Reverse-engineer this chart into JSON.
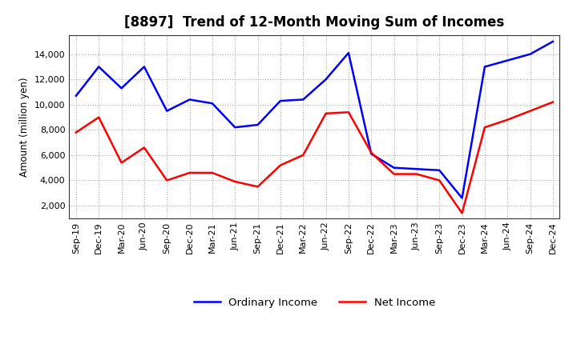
{
  "title": "[8897]  Trend of 12-Month Moving Sum of Incomes",
  "ylabel": "Amount (million yen)",
  "x_labels": [
    "Sep-19",
    "Dec-19",
    "Mar-20",
    "Jun-20",
    "Sep-20",
    "Dec-20",
    "Mar-21",
    "Jun-21",
    "Sep-21",
    "Dec-21",
    "Mar-22",
    "Jun-22",
    "Sep-22",
    "Dec-22",
    "Mar-23",
    "Jun-23",
    "Sep-23",
    "Dec-23",
    "Mar-24",
    "Jun-24",
    "Sep-24",
    "Dec-24"
  ],
  "ordinary_income": [
    10700,
    13000,
    11300,
    13000,
    9500,
    10400,
    10100,
    8200,
    8400,
    10300,
    10400,
    12000,
    14100,
    6100,
    5000,
    4900,
    4800,
    2600,
    13000,
    13500,
    14000,
    15000
  ],
  "net_income": [
    7800,
    9000,
    5400,
    6600,
    4000,
    4600,
    4600,
    3900,
    3500,
    5200,
    6000,
    9300,
    9400,
    6200,
    4500,
    4500,
    4000,
    1400,
    8200,
    8800,
    9500,
    10200
  ],
  "ordinary_color": "#0000ff",
  "net_color": "#ff0000",
  "bg_color": "#ffffff",
  "plot_bg_color": "#ffffff",
  "grid_color": "#aaaaaa",
  "ylim": [
    1000,
    15500
  ],
  "yticks": [
    2000,
    4000,
    6000,
    8000,
    10000,
    12000,
    14000
  ],
  "line_width": 1.8,
  "title_fontsize": 12,
  "tick_fontsize": 8,
  "legend_fontsize": 9.5
}
